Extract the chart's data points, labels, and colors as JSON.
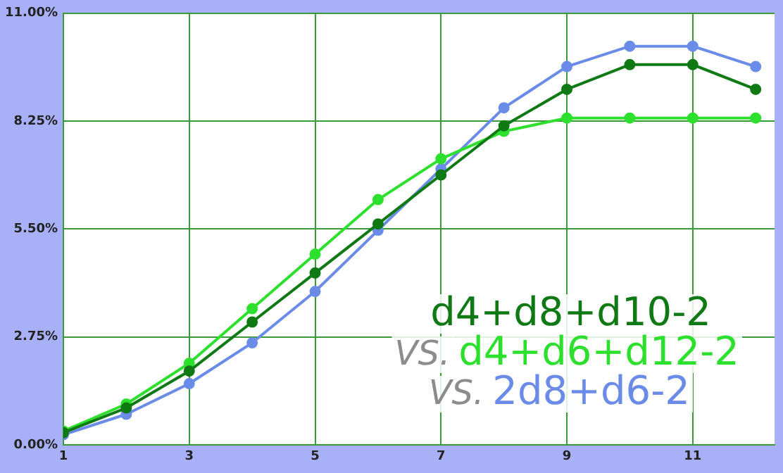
{
  "chart_data": {
    "type": "line",
    "x": [
      1,
      2,
      3,
      4,
      5,
      6,
      7,
      8,
      9,
      10,
      11,
      12
    ],
    "series": [
      {
        "name": "d4+d8+d10-2",
        "color": "#0f7a14",
        "values": [
          0.31,
          0.94,
          1.88,
          3.13,
          4.38,
          5.63,
          6.88,
          8.13,
          9.06,
          9.69,
          9.69,
          9.06
        ]
      },
      {
        "name": "d4+d6+d12-2",
        "color": "#2ee02e",
        "values": [
          0.35,
          1.04,
          2.08,
          3.47,
          4.86,
          6.25,
          7.29,
          7.99,
          8.33,
          8.33,
          8.33,
          8.33
        ]
      },
      {
        "name": "2d8+d6-2",
        "color": "#6a8ce8",
        "values": [
          0.26,
          0.78,
          1.56,
          2.6,
          3.91,
          5.47,
          7.03,
          8.59,
          9.64,
          10.16,
          10.16,
          9.64
        ]
      }
    ],
    "annotations": [
      "VS.",
      "VS."
    ],
    "xlim": [
      1,
      12.3
    ],
    "xticks": [
      1,
      3,
      5,
      7,
      9,
      11
    ],
    "ylim": [
      0,
      11
    ],
    "yticks": [
      {
        "value": 0,
        "label": "0.00%"
      },
      {
        "value": 2.75,
        "label": "2.75%"
      },
      {
        "value": 5.5,
        "label": "5.50%"
      },
      {
        "value": 8.25,
        "label": "8.25%"
      },
      {
        "value": 11,
        "label": "11.00%"
      }
    ],
    "grid": true,
    "legend": "bottom right",
    "marker": "circle",
    "line_style": "solid"
  }
}
